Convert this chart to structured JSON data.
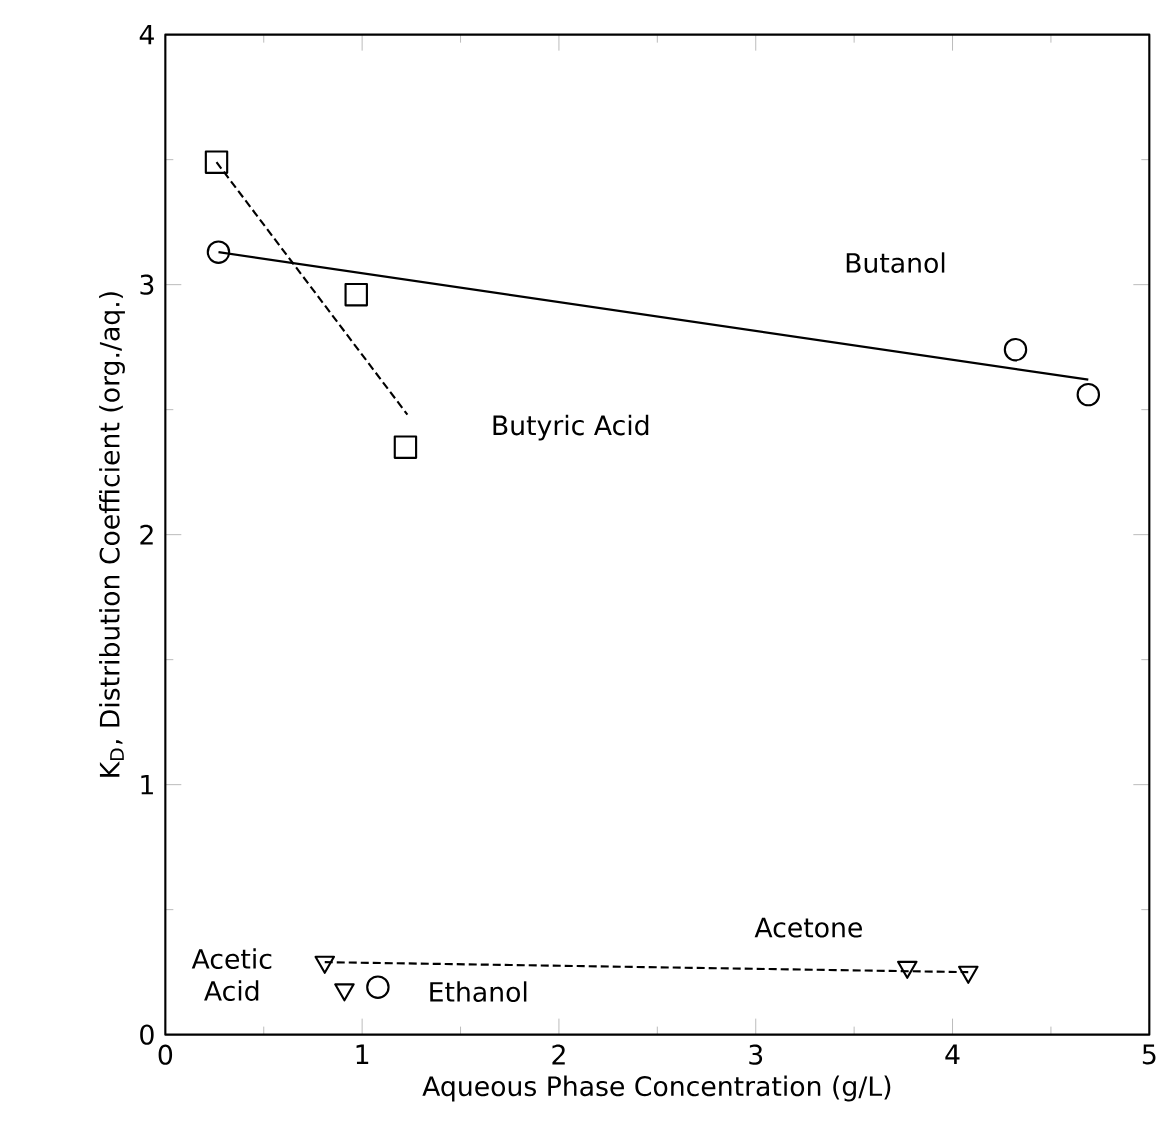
{
  "chart_data": {
    "type": "scatter",
    "xlabel": "Aqueous Phase Concentration (g/L)",
    "ylabel": "K$_{D}$, Distribution Coefficient (org./aq.)",
    "xlim": [
      0,
      5
    ],
    "ylim": [
      0,
      4
    ],
    "xticks": [
      0,
      1,
      2,
      3,
      4,
      5
    ],
    "yticks": [
      0,
      1,
      2,
      3,
      4
    ],
    "grid": false,
    "series": [
      {
        "marker": "circle",
        "color": "#000000",
        "x": [
          0.27,
          4.32,
          4.69
        ],
        "values": [
          3.13,
          2.74,
          2.56
        ]
      },
      {
        "type": "line",
        "marker": "none",
        "line_style": "solid",
        "color": "#000000",
        "x": [
          0.27,
          4.69
        ],
        "values": [
          3.13,
          2.62
        ]
      },
      {
        "marker": "square",
        "color": "#000000",
        "x": [
          0.26,
          0.97,
          1.22
        ],
        "values": [
          3.49,
          2.96,
          2.35
        ]
      },
      {
        "type": "line",
        "marker": "none",
        "line_style": "dashed",
        "color": "#000000",
        "x": [
          0.26,
          1.23
        ],
        "values": [
          3.49,
          2.48
        ]
      },
      {
        "marker": "triangle",
        "color": "#000000",
        "x": [
          0.81,
          3.77,
          4.08
        ],
        "values": [
          0.29,
          0.27,
          0.25
        ]
      },
      {
        "type": "line",
        "marker": "none",
        "line_style": "dashed",
        "color": "#000000",
        "x": [
          0.81,
          4.08
        ],
        "values": [
          0.29,
          0.25
        ]
      },
      {
        "marker": "triangle",
        "color": "#000000",
        "x": [
          0.91
        ],
        "values": [
          0.18
        ]
      },
      {
        "marker": "circle",
        "color": "#000000",
        "x": [
          1.08
        ],
        "values": [
          0.19
        ]
      }
    ],
    "annotations": [
      "Butanol",
      "Butyric Acid",
      "Acetone",
      "Acetic Acid",
      "Ethanol"
    ]
  }
}
